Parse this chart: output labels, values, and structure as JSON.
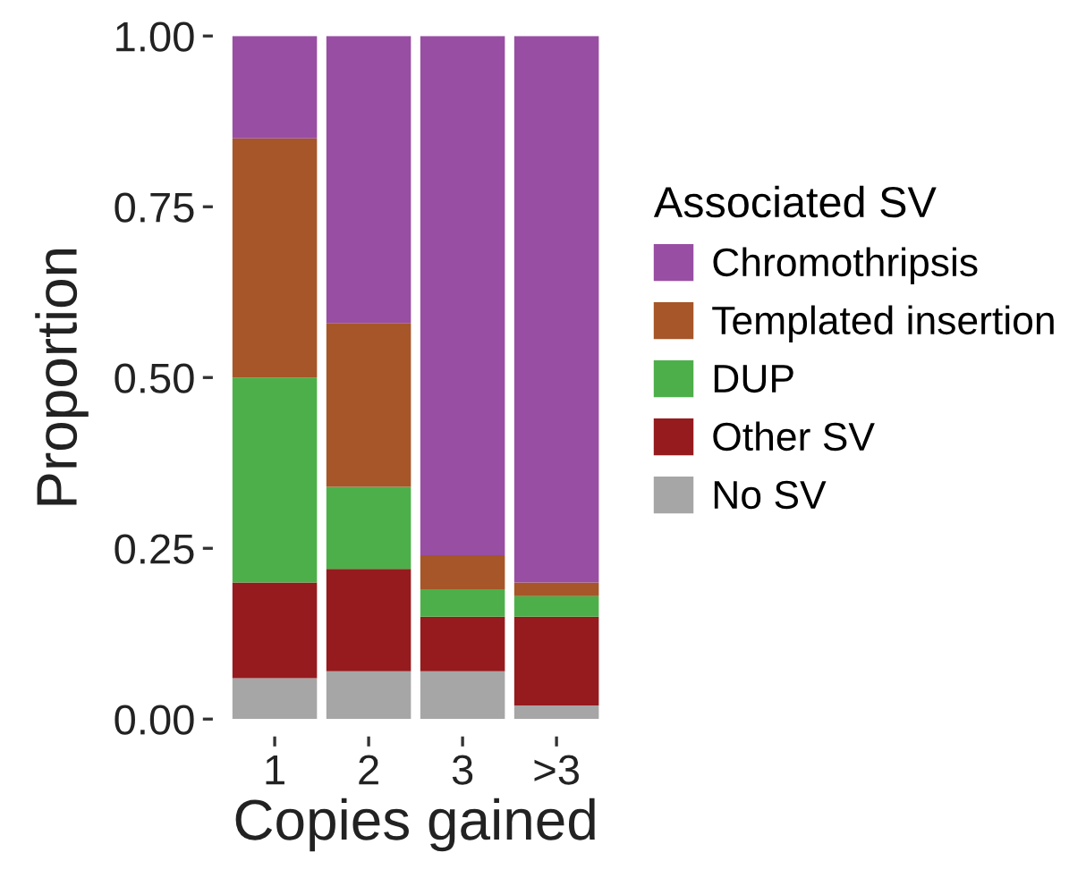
{
  "chart_data": {
    "type": "bar",
    "stacked": true,
    "xlabel": "Copies gained",
    "ylabel": "Proportion",
    "legend_title": "Associated SV",
    "legend": "right",
    "categories": [
      "1",
      "2",
      "3",
      ">3"
    ],
    "ylim": [
      0,
      1
    ],
    "yticks": [
      {
        "value": 0,
        "label": "0.00"
      },
      {
        "value": 0.25,
        "label": "0.25"
      },
      {
        "value": 0.5,
        "label": "0.50"
      },
      {
        "value": 0.75,
        "label": "0.75"
      },
      {
        "value": 1,
        "label": "1.00"
      }
    ],
    "series": [
      {
        "name": "No SV",
        "color": "#a6a6a6",
        "values": [
          0.06,
          0.07,
          0.07,
          0.02
        ]
      },
      {
        "name": "Other SV",
        "color": "#951b1e",
        "values": [
          0.14,
          0.15,
          0.08,
          0.13
        ]
      },
      {
        "name": "DUP",
        "color": "#4daf4a",
        "values": [
          0.3,
          0.12,
          0.04,
          0.03
        ]
      },
      {
        "name": "Templated insertion",
        "color": "#a65628",
        "values": [
          0.35,
          0.24,
          0.05,
          0.02
        ]
      },
      {
        "name": "Chromothripsis",
        "color": "#984ea3",
        "values": [
          0.15,
          0.42,
          0.76,
          0.8
        ]
      }
    ]
  }
}
